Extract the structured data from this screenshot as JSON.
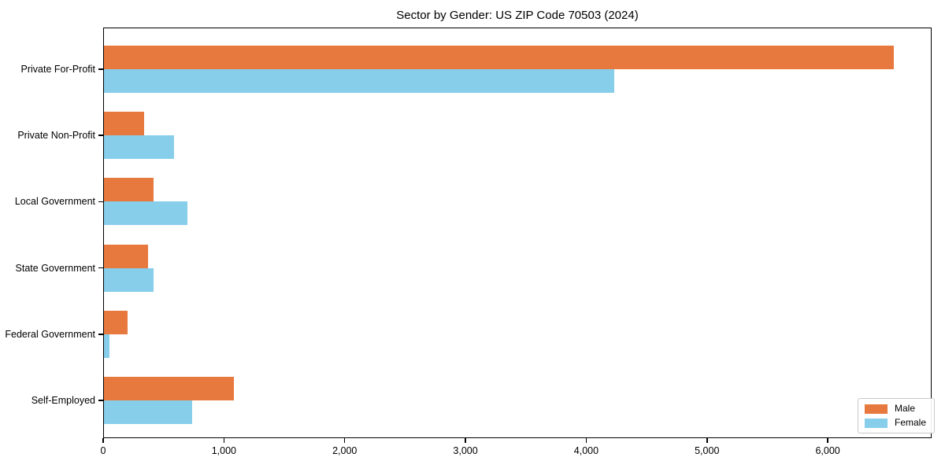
{
  "chart_data": {
    "type": "bar",
    "orientation": "horizontal",
    "title": "Sector by Gender: US ZIP Code 70503 (2024)",
    "categories": [
      "Private For-Profit",
      "Private Non-Profit",
      "Local Government",
      "State Government",
      "Federal Government",
      "Self-Employed"
    ],
    "series": [
      {
        "name": "Male",
        "color": "#e8793e",
        "values": [
          6550,
          340,
          420,
          370,
          200,
          1080
        ]
      },
      {
        "name": "Female",
        "color": "#87ceeb",
        "values": [
          4230,
          590,
          700,
          415,
          50,
          740
        ]
      }
    ],
    "xlabel": "",
    "ylabel": "",
    "xlim": [
      0,
      6860
    ],
    "xticks": [
      0,
      1000,
      2000,
      3000,
      4000,
      5000,
      6000
    ],
    "xtick_labels": [
      "0",
      "1,000",
      "2,000",
      "3,000",
      "4,000",
      "5,000",
      "6,000"
    ],
    "grid": false,
    "legend": {
      "position": "lower right",
      "entries": [
        "Male",
        "Female"
      ]
    },
    "colors": {
      "axis": "#000000",
      "background": "#ffffff"
    }
  }
}
